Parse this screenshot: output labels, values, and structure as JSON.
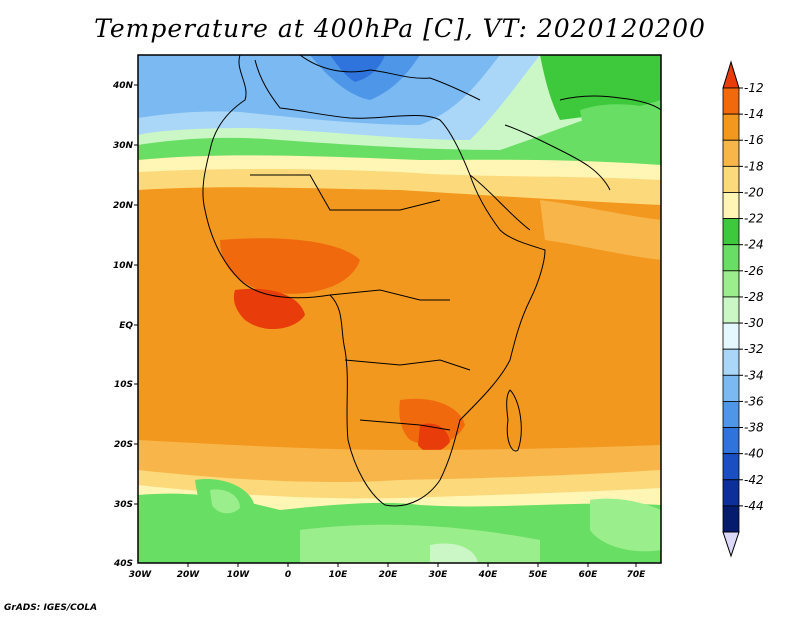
{
  "title": "Temperature at 400hPa [C], VT: 2020120200",
  "credit": "GrADS: IGES/COLA",
  "map": {
    "lat_labels": [
      "40N",
      "30N",
      "20N",
      "10N",
      "EQ",
      "10S",
      "20S",
      "30S",
      "40S"
    ],
    "lon_labels": [
      "30W",
      "20W",
      "10W",
      "0",
      "10E",
      "20E",
      "30E",
      "40E",
      "50E",
      "60E",
      "70E"
    ],
    "lat_range": [
      -40,
      45
    ],
    "lon_range": [
      -30,
      75
    ]
  },
  "colorbar": {
    "levels": [
      "-12",
      "-14",
      "-16",
      "-18",
      "-20",
      "-22",
      "-24",
      "-26",
      "-28",
      "-30",
      "-32",
      "-34",
      "-36",
      "-38",
      "-40",
      "-42",
      "-44"
    ],
    "colors": [
      "#e83c0a",
      "#f06a0d",
      "#f3981e",
      "#f8b64a",
      "#fcd97a",
      "#fff5b4",
      "#3ec83c",
      "#69de64",
      "#9aee8c",
      "#cbf7c6",
      "#e6f8ff",
      "#aad7f7",
      "#7ab9f2",
      "#4e97e8",
      "#2f74dc",
      "#1a4fc2",
      "#0d2f9a",
      "#061a6e",
      "#dcd8f8"
    ]
  }
}
